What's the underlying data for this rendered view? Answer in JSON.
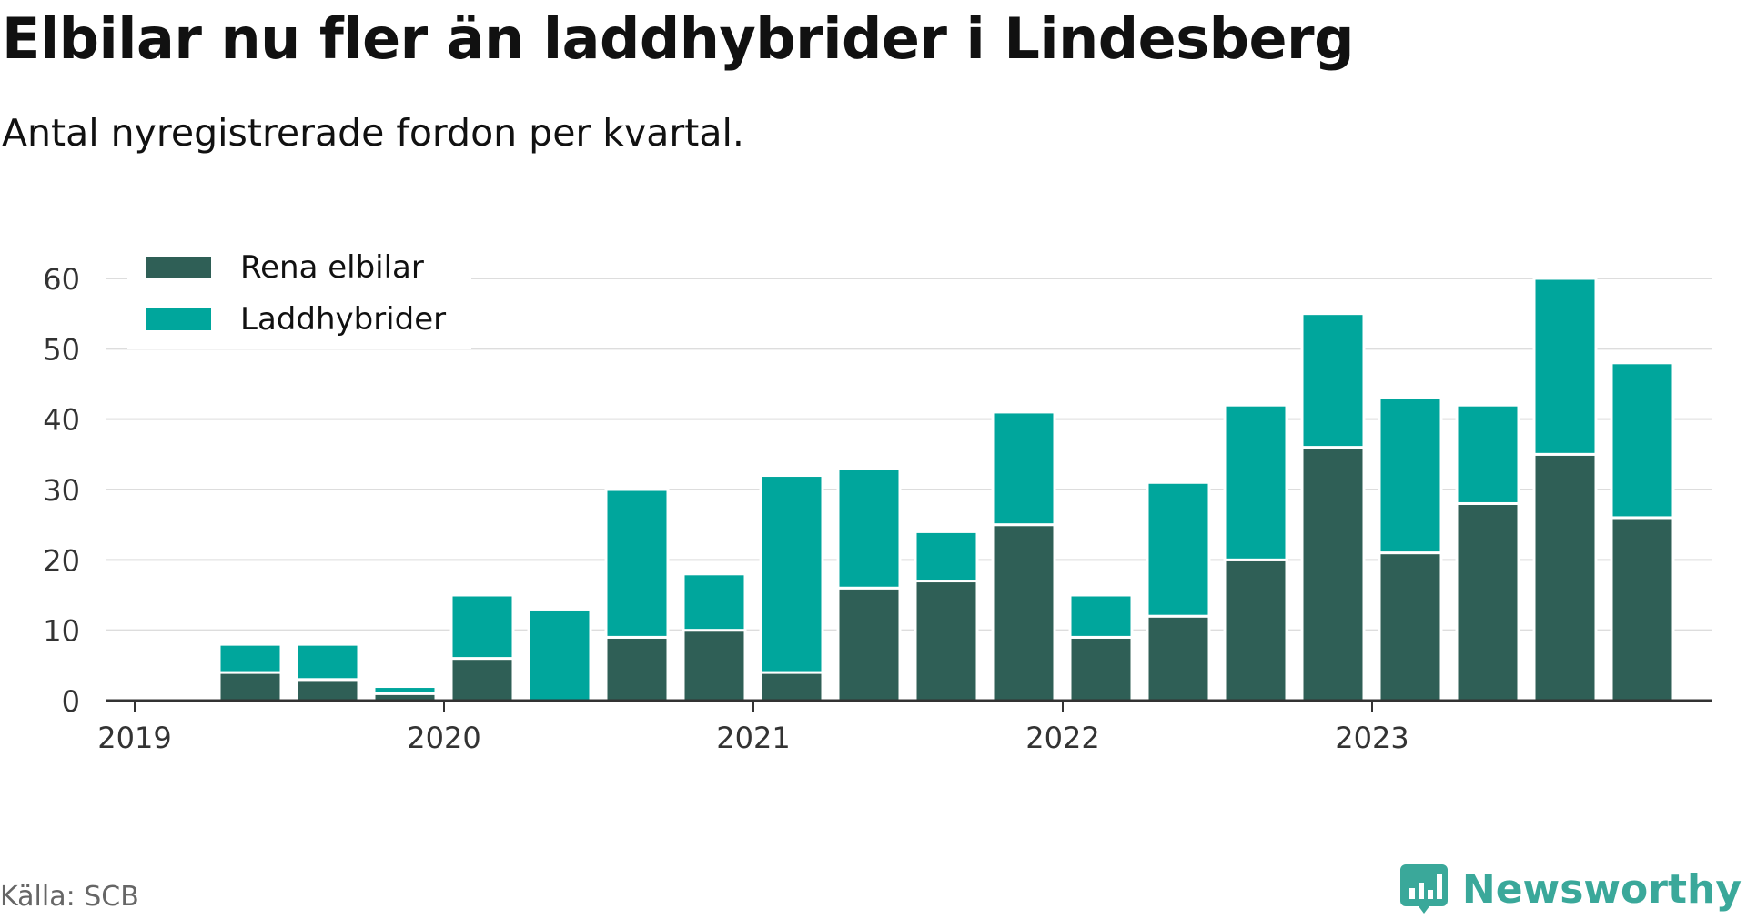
{
  "title": "Elbilar nu fler än laddhybrider i Lindesberg",
  "subtitle": "Antal nyregistrerade fordon per kvartal.",
  "source": "Källa: SCB",
  "brand": "Newsworthy",
  "colors": {
    "elbilar": "#2f5f56",
    "laddhybrider": "#00a69c",
    "grid": "#dddddd",
    "axis": "#333333",
    "brand": "#3aa89a"
  },
  "chart_data": {
    "type": "bar",
    "stacked": true,
    "title": "Elbilar nu fler än laddhybrider i Lindesberg",
    "subtitle": "Antal nyregistrerade fordon per kvartal.",
    "xlabel": "",
    "ylabel": "",
    "ylim": [
      0,
      60
    ],
    "yticks": [
      0,
      10,
      20,
      30,
      40,
      50,
      60
    ],
    "grid": true,
    "legend_position": "top-left",
    "year_ticks": [
      "2019",
      "2020",
      "2021",
      "2022",
      "2023"
    ],
    "categories": [
      "2019 Q1",
      "2019 Q2",
      "2019 Q3",
      "2019 Q4",
      "2020 Q1",
      "2020 Q2",
      "2020 Q3",
      "2020 Q4",
      "2021 Q1",
      "2021 Q2",
      "2021 Q3",
      "2021 Q4",
      "2022 Q1",
      "2022 Q2",
      "2022 Q3",
      "2022 Q4",
      "2023 Q1",
      "2023 Q2",
      "2023 Q3",
      "2023 Q4"
    ],
    "series": [
      {
        "name": "Rena elbilar",
        "color": "#2f5f56",
        "values": [
          0,
          4,
          3,
          1,
          6,
          0,
          9,
          10,
          4,
          16,
          17,
          25,
          9,
          12,
          20,
          36,
          21,
          28,
          35,
          26
        ]
      },
      {
        "name": "Laddhybrider",
        "color": "#00a69c",
        "values": [
          0,
          4,
          5,
          1,
          9,
          13,
          21,
          8,
          28,
          17,
          7,
          16,
          6,
          19,
          22,
          19,
          22,
          14,
          25,
          22
        ]
      }
    ]
  }
}
